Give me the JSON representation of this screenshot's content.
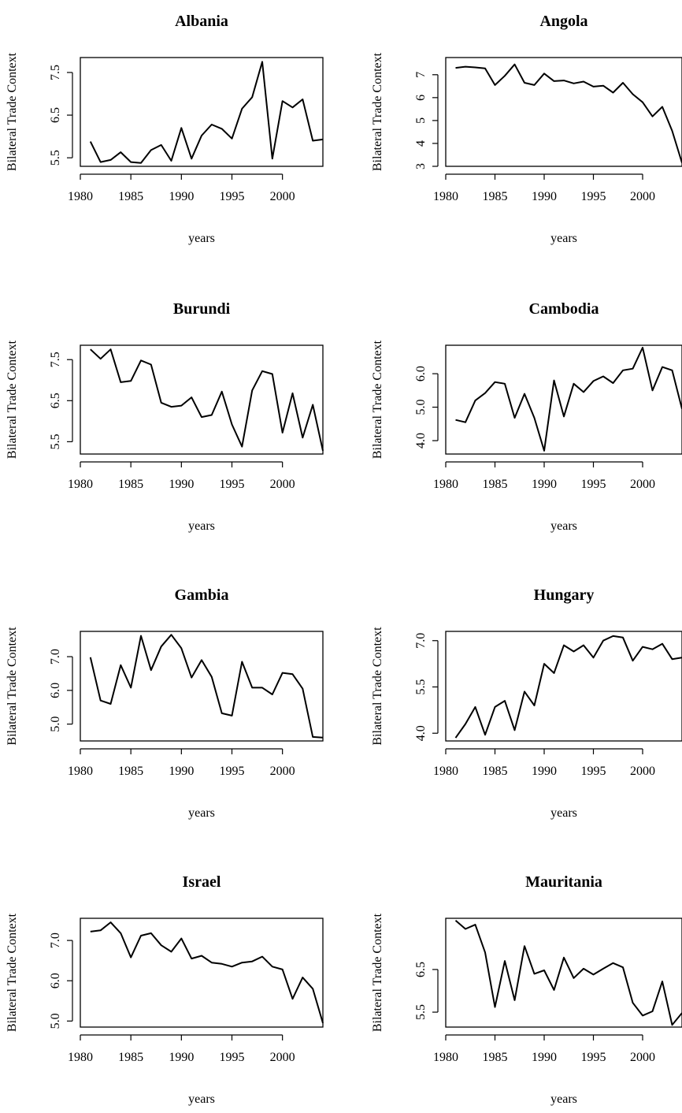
{
  "chart_data": [
    {
      "type": "line",
      "title": "Albania",
      "xlabel": "years",
      "ylabel": "Bilateral Trade Context",
      "x": [
        1981,
        1982,
        1983,
        1984,
        1985,
        1986,
        1987,
        1988,
        1989,
        1990,
        1991,
        1992,
        1993,
        1994,
        1995,
        1996,
        1997,
        1998,
        1999,
        2000,
        2001,
        2002,
        2003,
        2004
      ],
      "values": [
        5.88,
        5.4,
        5.45,
        5.63,
        5.4,
        5.38,
        5.68,
        5.8,
        5.43,
        6.2,
        5.48,
        6.02,
        6.28,
        6.18,
        5.95,
        6.65,
        6.92,
        7.75,
        5.48,
        6.83,
        6.68,
        6.87,
        5.9,
        5.93
      ],
      "xlim": [
        1980,
        2004
      ],
      "ylim": [
        5.3,
        7.85
      ],
      "xticks": [
        "1980",
        "1985",
        "1990",
        "1995",
        "2000"
      ],
      "yticks": [
        "5.5",
        "6.5",
        "7.5"
      ],
      "ytick_values": [
        5.5,
        6.5,
        7.5
      ]
    },
    {
      "type": "line",
      "title": "Angola",
      "xlabel": "years",
      "ylabel": "Bilateral Trade Context",
      "x": [
        1981,
        1982,
        1983,
        1984,
        1985,
        1986,
        1987,
        1988,
        1989,
        1990,
        1991,
        1992,
        1993,
        1994,
        1995,
        1996,
        1997,
        1998,
        1999,
        2000,
        2001,
        2002,
        2003,
        2004
      ],
      "values": [
        7.3,
        7.35,
        7.32,
        7.28,
        6.55,
        6.95,
        7.45,
        6.65,
        6.55,
        7.05,
        6.72,
        6.75,
        6.62,
        6.7,
        6.48,
        6.52,
        6.22,
        6.65,
        6.15,
        5.8,
        5.18,
        5.6,
        4.55,
        3.15
      ],
      "xlim": [
        1980,
        2004
      ],
      "ylim": [
        3.0,
        7.75
      ],
      "xticks": [
        "1980",
        "1985",
        "1990",
        "1995",
        "2000"
      ],
      "yticks": [
        "3",
        "4",
        "5",
        "6",
        "7"
      ],
      "ytick_values": [
        3,
        4,
        5,
        6,
        7
      ]
    },
    {
      "type": "line",
      "title": "Burundi",
      "xlabel": "years",
      "ylabel": "Bilateral Trade Context",
      "x": [
        1981,
        1982,
        1983,
        1984,
        1985,
        1986,
        1987,
        1988,
        1989,
        1990,
        1991,
        1992,
        1993,
        1994,
        1995,
        1996,
        1997,
        1998,
        1999,
        2000,
        2001,
        2002,
        2003,
        2004
      ],
      "values": [
        7.75,
        7.52,
        7.75,
        6.95,
        6.98,
        7.48,
        7.38,
        6.45,
        6.35,
        6.38,
        6.58,
        6.1,
        6.15,
        6.72,
        5.92,
        5.38,
        6.75,
        7.22,
        7.15,
        5.72,
        6.68,
        5.6,
        6.4,
        5.28
      ],
      "xlim": [
        1980,
        2004
      ],
      "ylim": [
        5.2,
        7.85
      ],
      "xticks": [
        "1980",
        "1985",
        "1990",
        "1995",
        "2000"
      ],
      "yticks": [
        "5.5",
        "6.5",
        "7.5"
      ],
      "ytick_values": [
        5.5,
        6.5,
        7.5
      ]
    },
    {
      "type": "line",
      "title": "Cambodia",
      "xlabel": "years",
      "ylabel": "Bilateral Trade Context",
      "x": [
        1981,
        1982,
        1983,
        1984,
        1985,
        1986,
        1987,
        1988,
        1989,
        1990,
        1991,
        1992,
        1993,
        1994,
        1995,
        1996,
        1997,
        1998,
        1999,
        2000,
        2001,
        2002,
        2003,
        2004
      ],
      "values": [
        4.62,
        4.55,
        5.2,
        5.42,
        5.75,
        5.7,
        4.68,
        5.4,
        4.68,
        3.7,
        5.8,
        4.72,
        5.7,
        5.45,
        5.78,
        5.92,
        5.72,
        6.1,
        6.15,
        6.78,
        5.5,
        6.2,
        6.1,
        4.95
      ],
      "xlim": [
        1980,
        2004
      ],
      "ylim": [
        3.6,
        6.85
      ],
      "xticks": [
        "1980",
        "1985",
        "1990",
        "1995",
        "2000"
      ],
      "yticks": [
        "4.0",
        "5.0",
        "6.0"
      ],
      "ytick_values": [
        4.0,
        5.0,
        6.0
      ]
    },
    {
      "type": "line",
      "title": "Gambia",
      "xlabel": "years",
      "ylabel": "Bilateral Trade Context",
      "x": [
        1981,
        1982,
        1983,
        1984,
        1985,
        1986,
        1987,
        1988,
        1989,
        1990,
        1991,
        1992,
        1993,
        1994,
        1995,
        1996,
        1997,
        1998,
        1999,
        2000,
        2001,
        2002,
        2003,
        2004
      ],
      "values": [
        6.98,
        5.7,
        5.6,
        6.75,
        6.08,
        7.62,
        6.6,
        7.3,
        7.65,
        7.25,
        6.38,
        6.9,
        6.4,
        5.32,
        5.25,
        6.85,
        6.08,
        6.08,
        5.88,
        6.52,
        6.48,
        6.05,
        4.62,
        4.6
      ],
      "xlim": [
        1980,
        2004
      ],
      "ylim": [
        4.5,
        7.75
      ],
      "xticks": [
        "1980",
        "1985",
        "1990",
        "1995",
        "2000"
      ],
      "yticks": [
        "5.0",
        "6.0",
        "7.0"
      ],
      "ytick_values": [
        5.0,
        6.0,
        7.0
      ]
    },
    {
      "type": "line",
      "title": "Hungary",
      "xlabel": "years",
      "ylabel": "Bilateral Trade Context",
      "x": [
        1981,
        1982,
        1983,
        1984,
        1985,
        1986,
        1987,
        1988,
        1989,
        1990,
        1991,
        1992,
        1993,
        1994,
        1995,
        1996,
        1997,
        1998,
        1999,
        2000,
        2001,
        2002,
        2003,
        2004
      ],
      "values": [
        3.85,
        4.3,
        4.85,
        3.95,
        4.85,
        5.05,
        4.1,
        5.35,
        4.9,
        6.25,
        5.95,
        6.85,
        6.65,
        6.85,
        6.45,
        7.0,
        7.15,
        7.1,
        6.35,
        6.8,
        6.72,
        6.9,
        6.4,
        6.45
      ],
      "xlim": [
        1980,
        2004
      ],
      "ylim": [
        3.75,
        7.3
      ],
      "xticks": [
        "1980",
        "1985",
        "1990",
        "1995",
        "2000"
      ],
      "yticks": [
        "4.0",
        "5.5",
        "7.0"
      ],
      "ytick_values": [
        4.0,
        5.5,
        7.0
      ]
    },
    {
      "type": "line",
      "title": "Israel",
      "xlabel": "years",
      "ylabel": "Bilateral Trade Context",
      "x": [
        1981,
        1982,
        1983,
        1984,
        1985,
        1986,
        1987,
        1988,
        1989,
        1990,
        1991,
        1992,
        1993,
        1994,
        1995,
        1996,
        1997,
        1998,
        1999,
        2000,
        2001,
        2002,
        2003,
        2004
      ],
      "values": [
        7.22,
        7.25,
        7.45,
        7.18,
        6.58,
        7.12,
        7.18,
        6.88,
        6.72,
        7.05,
        6.55,
        6.62,
        6.45,
        6.42,
        6.35,
        6.45,
        6.48,
        6.6,
        6.35,
        6.28,
        5.55,
        6.08,
        5.8,
        4.95
      ],
      "xlim": [
        1980,
        2004
      ],
      "ylim": [
        4.85,
        7.55
      ],
      "xticks": [
        "1980",
        "1985",
        "1990",
        "1995",
        "2000"
      ],
      "yticks": [
        "5.0",
        "6.0",
        "7.0"
      ],
      "ytick_values": [
        5.0,
        6.0,
        7.0
      ]
    },
    {
      "type": "line",
      "title": "Mauritania",
      "xlabel": "years",
      "ylabel": "Bilateral Trade Context",
      "x": [
        1981,
        1982,
        1983,
        1984,
        1985,
        1986,
        1987,
        1988,
        1989,
        1990,
        1991,
        1992,
        1993,
        1994,
        1995,
        1996,
        1997,
        1998,
        1999,
        2000,
        2001,
        2002,
        2003,
        2004
      ],
      "values": [
        7.65,
        7.45,
        7.55,
        6.9,
        5.62,
        6.7,
        5.78,
        7.05,
        6.4,
        6.48,
        6.02,
        6.78,
        6.3,
        6.52,
        6.38,
        6.52,
        6.65,
        6.55,
        5.72,
        5.42,
        5.52,
        6.22,
        5.2,
        5.48
      ],
      "xlim": [
        1980,
        2004
      ],
      "ylim": [
        5.15,
        7.7
      ],
      "xticks": [
        "1980",
        "1985",
        "1990",
        "1995",
        "2000"
      ],
      "yticks": [
        "5.5",
        "6.5"
      ],
      "ytick_values": [
        5.5,
        6.5
      ]
    }
  ]
}
